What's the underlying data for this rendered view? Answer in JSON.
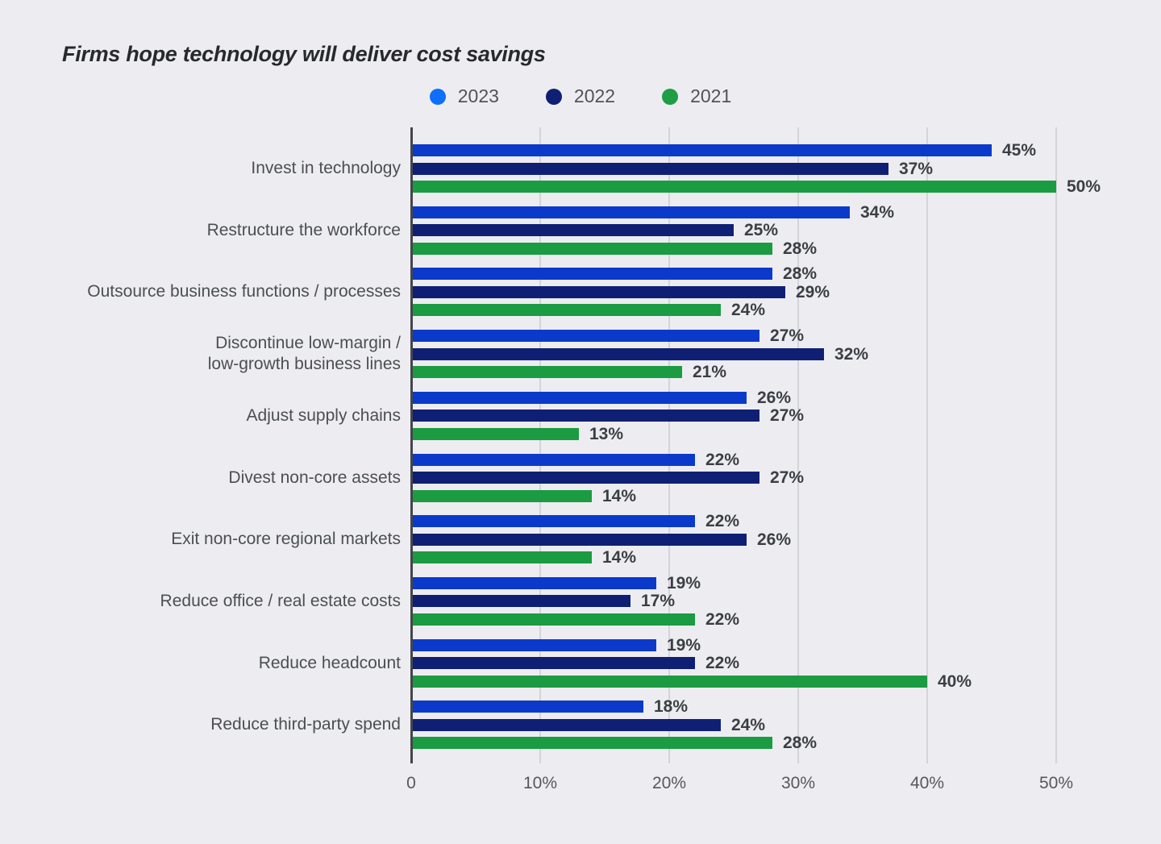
{
  "chart": {
    "title": "Firms hope technology will deliver cost savings"
  },
  "chart_data": {
    "type": "bar",
    "orientation": "horizontal",
    "title": "Firms hope technology will deliver cost savings",
    "background": "#ededf1",
    "categories": [
      "Invest in technology",
      "Restructure the workforce",
      "Outsource business functions / processes",
      "Discontinue low-margin / low-growth business lines",
      "Adjust supply chains",
      "Divest non-core assets",
      "Exit non-core regional markets",
      "Reduce office / real estate costs",
      "Reduce headcount",
      "Reduce third-party spend"
    ],
    "category_lines": [
      [
        "Invest in technology"
      ],
      [
        "Restructure the workforce"
      ],
      [
        "Outsource business functions / processes"
      ],
      [
        "Discontinue low-margin /",
        "low-growth business lines"
      ],
      [
        "Adjust supply chains"
      ],
      [
        "Divest non-core assets"
      ],
      [
        "Exit non-core regional markets"
      ],
      [
        "Reduce office / real estate costs"
      ],
      [
        "Reduce headcount"
      ],
      [
        "Reduce third-party spend"
      ]
    ],
    "series": [
      {
        "name": "2023",
        "color": "#0b3aca",
        "legend_dot_color": "#0e6ffa",
        "values": [
          45,
          34,
          28,
          27,
          26,
          22,
          22,
          19,
          19,
          18
        ]
      },
      {
        "name": "2022",
        "color": "#0f2074",
        "legend_dot_color": "#0f2074",
        "values": [
          37,
          25,
          29,
          32,
          27,
          27,
          26,
          17,
          22,
          24
        ]
      },
      {
        "name": "2021",
        "color": "#1b9b42",
        "legend_dot_color": "#1f9e45",
        "values": [
          50,
          28,
          24,
          21,
          13,
          14,
          14,
          22,
          40,
          28
        ]
      }
    ],
    "value_suffix": "%",
    "xlabel": "",
    "ylabel": "",
    "xlim": [
      0,
      50
    ],
    "x_ticks": [
      "0",
      "10%",
      "20%",
      "30%",
      "40%",
      "50%"
    ],
    "grid": "vertical",
    "legend_position": "top-center"
  }
}
